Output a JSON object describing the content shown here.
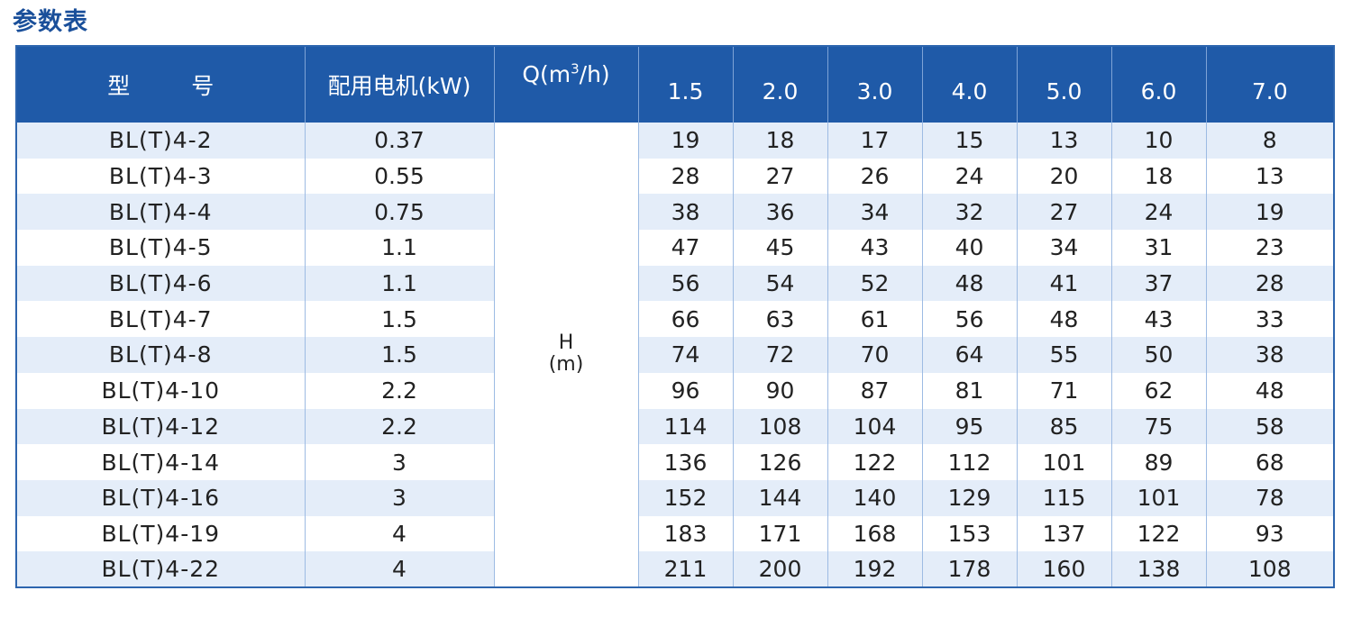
{
  "title": "参数表",
  "header": {
    "model": "型 号",
    "motor": "配用电机(kW)",
    "flow_prefix": "Q(m",
    "flow_sup": "3",
    "flow_suffix": "/h)",
    "flows": [
      "1.5",
      "2.0",
      "3.0",
      "4.0",
      "5.0",
      "6.0",
      "7.0"
    ]
  },
  "head_label": {
    "line1": "H",
    "line2": "(m)"
  },
  "rows": [
    {
      "model": "BL(T)4-2",
      "motor": "0.37",
      "heads": [
        "19",
        "18",
        "17",
        "15",
        "13",
        "10",
        "8"
      ]
    },
    {
      "model": "BL(T)4-3",
      "motor": "0.55",
      "heads": [
        "28",
        "27",
        "26",
        "24",
        "20",
        "18",
        "13"
      ]
    },
    {
      "model": "BL(T)4-4",
      "motor": "0.75",
      "heads": [
        "38",
        "36",
        "34",
        "32",
        "27",
        "24",
        "19"
      ]
    },
    {
      "model": "BL(T)4-5",
      "motor": "1.1",
      "heads": [
        "47",
        "45",
        "43",
        "40",
        "34",
        "31",
        "23"
      ]
    },
    {
      "model": "BL(T)4-6",
      "motor": "1.1",
      "heads": [
        "56",
        "54",
        "52",
        "48",
        "41",
        "37",
        "28"
      ]
    },
    {
      "model": "BL(T)4-7",
      "motor": "1.5",
      "heads": [
        "66",
        "63",
        "61",
        "56",
        "48",
        "43",
        "33"
      ]
    },
    {
      "model": "BL(T)4-8",
      "motor": "1.5",
      "heads": [
        "74",
        "72",
        "70",
        "64",
        "55",
        "50",
        "38"
      ]
    },
    {
      "model": "BL(T)4-10",
      "motor": "2.2",
      "heads": [
        "96",
        "90",
        "87",
        "81",
        "71",
        "62",
        "48"
      ]
    },
    {
      "model": "BL(T)4-12",
      "motor": "2.2",
      "heads": [
        "114",
        "108",
        "104",
        "95",
        "85",
        "75",
        "58"
      ]
    },
    {
      "model": "BL(T)4-14",
      "motor": "3",
      "heads": [
        "136",
        "126",
        "122",
        "112",
        "101",
        "89",
        "68"
      ]
    },
    {
      "model": "BL(T)4-16",
      "motor": "3",
      "heads": [
        "152",
        "144",
        "140",
        "129",
        "115",
        "101",
        "78"
      ]
    },
    {
      "model": "BL(T)4-19",
      "motor": "4",
      "heads": [
        "183",
        "171",
        "168",
        "153",
        "137",
        "122",
        "93"
      ]
    },
    {
      "model": "BL(T)4-22",
      "motor": "4",
      "heads": [
        "211",
        "200",
        "192",
        "178",
        "160",
        "138",
        "108"
      ]
    }
  ]
}
